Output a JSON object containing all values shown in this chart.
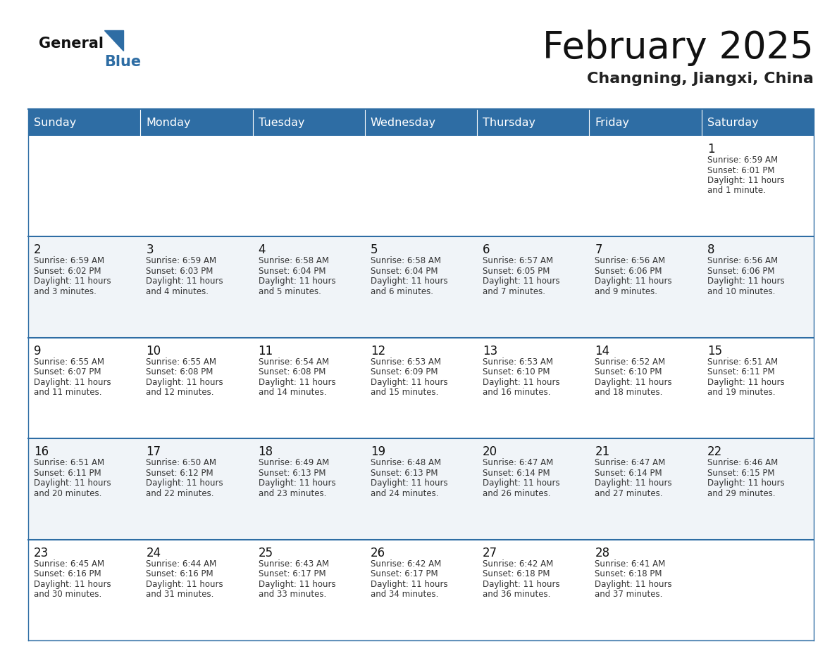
{
  "title": "February 2025",
  "subtitle": "Changning, Jiangxi, China",
  "header_bg": "#2E6DA4",
  "header_text_color": "#FFFFFF",
  "bg_color": "#FFFFFF",
  "alt_row_color": "#F0F4F8",
  "grid_line_color": "#2E6DA4",
  "day_headers": [
    "Sunday",
    "Monday",
    "Tuesday",
    "Wednesday",
    "Thursday",
    "Friday",
    "Saturday"
  ],
  "calendar": [
    [
      null,
      null,
      null,
      null,
      null,
      null,
      {
        "day": 1,
        "sunrise": "6:59 AM",
        "sunset": "6:01 PM",
        "daylight_line1": "Daylight: 11 hours",
        "daylight_line2": "and 1 minute."
      }
    ],
    [
      {
        "day": 2,
        "sunrise": "6:59 AM",
        "sunset": "6:02 PM",
        "daylight_line1": "Daylight: 11 hours",
        "daylight_line2": "and 3 minutes."
      },
      {
        "day": 3,
        "sunrise": "6:59 AM",
        "sunset": "6:03 PM",
        "daylight_line1": "Daylight: 11 hours",
        "daylight_line2": "and 4 minutes."
      },
      {
        "day": 4,
        "sunrise": "6:58 AM",
        "sunset": "6:04 PM",
        "daylight_line1": "Daylight: 11 hours",
        "daylight_line2": "and 5 minutes."
      },
      {
        "day": 5,
        "sunrise": "6:58 AM",
        "sunset": "6:04 PM",
        "daylight_line1": "Daylight: 11 hours",
        "daylight_line2": "and 6 minutes."
      },
      {
        "day": 6,
        "sunrise": "6:57 AM",
        "sunset": "6:05 PM",
        "daylight_line1": "Daylight: 11 hours",
        "daylight_line2": "and 7 minutes."
      },
      {
        "day": 7,
        "sunrise": "6:56 AM",
        "sunset": "6:06 PM",
        "daylight_line1": "Daylight: 11 hours",
        "daylight_line2": "and 9 minutes."
      },
      {
        "day": 8,
        "sunrise": "6:56 AM",
        "sunset": "6:06 PM",
        "daylight_line1": "Daylight: 11 hours",
        "daylight_line2": "and 10 minutes."
      }
    ],
    [
      {
        "day": 9,
        "sunrise": "6:55 AM",
        "sunset": "6:07 PM",
        "daylight_line1": "Daylight: 11 hours",
        "daylight_line2": "and 11 minutes."
      },
      {
        "day": 10,
        "sunrise": "6:55 AM",
        "sunset": "6:08 PM",
        "daylight_line1": "Daylight: 11 hours",
        "daylight_line2": "and 12 minutes."
      },
      {
        "day": 11,
        "sunrise": "6:54 AM",
        "sunset": "6:08 PM",
        "daylight_line1": "Daylight: 11 hours",
        "daylight_line2": "and 14 minutes."
      },
      {
        "day": 12,
        "sunrise": "6:53 AM",
        "sunset": "6:09 PM",
        "daylight_line1": "Daylight: 11 hours",
        "daylight_line2": "and 15 minutes."
      },
      {
        "day": 13,
        "sunrise": "6:53 AM",
        "sunset": "6:10 PM",
        "daylight_line1": "Daylight: 11 hours",
        "daylight_line2": "and 16 minutes."
      },
      {
        "day": 14,
        "sunrise": "6:52 AM",
        "sunset": "6:10 PM",
        "daylight_line1": "Daylight: 11 hours",
        "daylight_line2": "and 18 minutes."
      },
      {
        "day": 15,
        "sunrise": "6:51 AM",
        "sunset": "6:11 PM",
        "daylight_line1": "Daylight: 11 hours",
        "daylight_line2": "and 19 minutes."
      }
    ],
    [
      {
        "day": 16,
        "sunrise": "6:51 AM",
        "sunset": "6:11 PM",
        "daylight_line1": "Daylight: 11 hours",
        "daylight_line2": "and 20 minutes."
      },
      {
        "day": 17,
        "sunrise": "6:50 AM",
        "sunset": "6:12 PM",
        "daylight_line1": "Daylight: 11 hours",
        "daylight_line2": "and 22 minutes."
      },
      {
        "day": 18,
        "sunrise": "6:49 AM",
        "sunset": "6:13 PM",
        "daylight_line1": "Daylight: 11 hours",
        "daylight_line2": "and 23 minutes."
      },
      {
        "day": 19,
        "sunrise": "6:48 AM",
        "sunset": "6:13 PM",
        "daylight_line1": "Daylight: 11 hours",
        "daylight_line2": "and 24 minutes."
      },
      {
        "day": 20,
        "sunrise": "6:47 AM",
        "sunset": "6:14 PM",
        "daylight_line1": "Daylight: 11 hours",
        "daylight_line2": "and 26 minutes."
      },
      {
        "day": 21,
        "sunrise": "6:47 AM",
        "sunset": "6:14 PM",
        "daylight_line1": "Daylight: 11 hours",
        "daylight_line2": "and 27 minutes."
      },
      {
        "day": 22,
        "sunrise": "6:46 AM",
        "sunset": "6:15 PM",
        "daylight_line1": "Daylight: 11 hours",
        "daylight_line2": "and 29 minutes."
      }
    ],
    [
      {
        "day": 23,
        "sunrise": "6:45 AM",
        "sunset": "6:16 PM",
        "daylight_line1": "Daylight: 11 hours",
        "daylight_line2": "and 30 minutes."
      },
      {
        "day": 24,
        "sunrise": "6:44 AM",
        "sunset": "6:16 PM",
        "daylight_line1": "Daylight: 11 hours",
        "daylight_line2": "and 31 minutes."
      },
      {
        "day": 25,
        "sunrise": "6:43 AM",
        "sunset": "6:17 PM",
        "daylight_line1": "Daylight: 11 hours",
        "daylight_line2": "and 33 minutes."
      },
      {
        "day": 26,
        "sunrise": "6:42 AM",
        "sunset": "6:17 PM",
        "daylight_line1": "Daylight: 11 hours",
        "daylight_line2": "and 34 minutes."
      },
      {
        "day": 27,
        "sunrise": "6:42 AM",
        "sunset": "6:18 PM",
        "daylight_line1": "Daylight: 11 hours",
        "daylight_line2": "and 36 minutes."
      },
      {
        "day": 28,
        "sunrise": "6:41 AM",
        "sunset": "6:18 PM",
        "daylight_line1": "Daylight: 11 hours",
        "daylight_line2": "and 37 minutes."
      },
      null
    ]
  ],
  "title_fontsize": 38,
  "subtitle_fontsize": 16,
  "header_fontsize": 11.5,
  "day_num_fontsize": 12,
  "cell_text_fontsize": 8.5
}
